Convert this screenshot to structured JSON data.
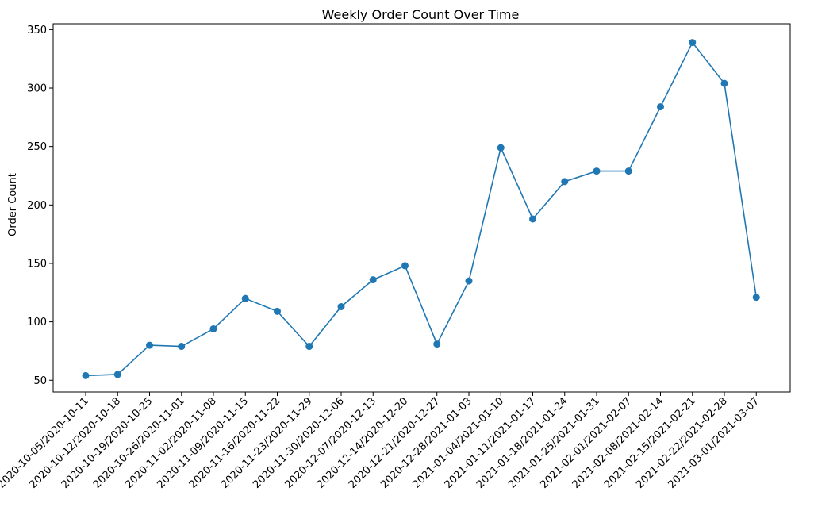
{
  "chart_data": {
    "type": "line",
    "title": "Weekly Order Count Over Time",
    "xlabel": "",
    "ylabel": "Order Count",
    "ylim": [
      40,
      355
    ],
    "yticks": [
      50,
      100,
      150,
      200,
      250,
      300,
      350
    ],
    "grid": false,
    "legend": "none",
    "categories": [
      "2020-10-05/2020-10-11",
      "2020-10-12/2020-10-18",
      "2020-10-19/2020-10-25",
      "2020-10-26/2020-11-01",
      "2020-11-02/2020-11-08",
      "2020-11-09/2020-11-15",
      "2020-11-16/2020-11-22",
      "2020-11-23/2020-11-29",
      "2020-11-30/2020-12-06",
      "2020-12-07/2020-12-13",
      "2020-12-14/2020-12-20",
      "2020-12-21/2020-12-27",
      "2020-12-28/2021-01-03",
      "2021-01-04/2021-01-10",
      "2021-01-11/2021-01-17",
      "2021-01-18/2021-01-24",
      "2021-01-25/2021-01-31",
      "2021-02-01/2021-02-07",
      "2021-02-08/2021-02-14",
      "2021-02-15/2021-02-21",
      "2021-02-22/2021-02-28",
      "2021-03-01/2021-03-07"
    ],
    "series": [
      {
        "color": "#1f77b4",
        "values": [
          54,
          55,
          80,
          79,
          94,
          120,
          109,
          79,
          113,
          136,
          148,
          81,
          135,
          249,
          188,
          220,
          229,
          229,
          284,
          339,
          304,
          121
        ]
      }
    ]
  }
}
